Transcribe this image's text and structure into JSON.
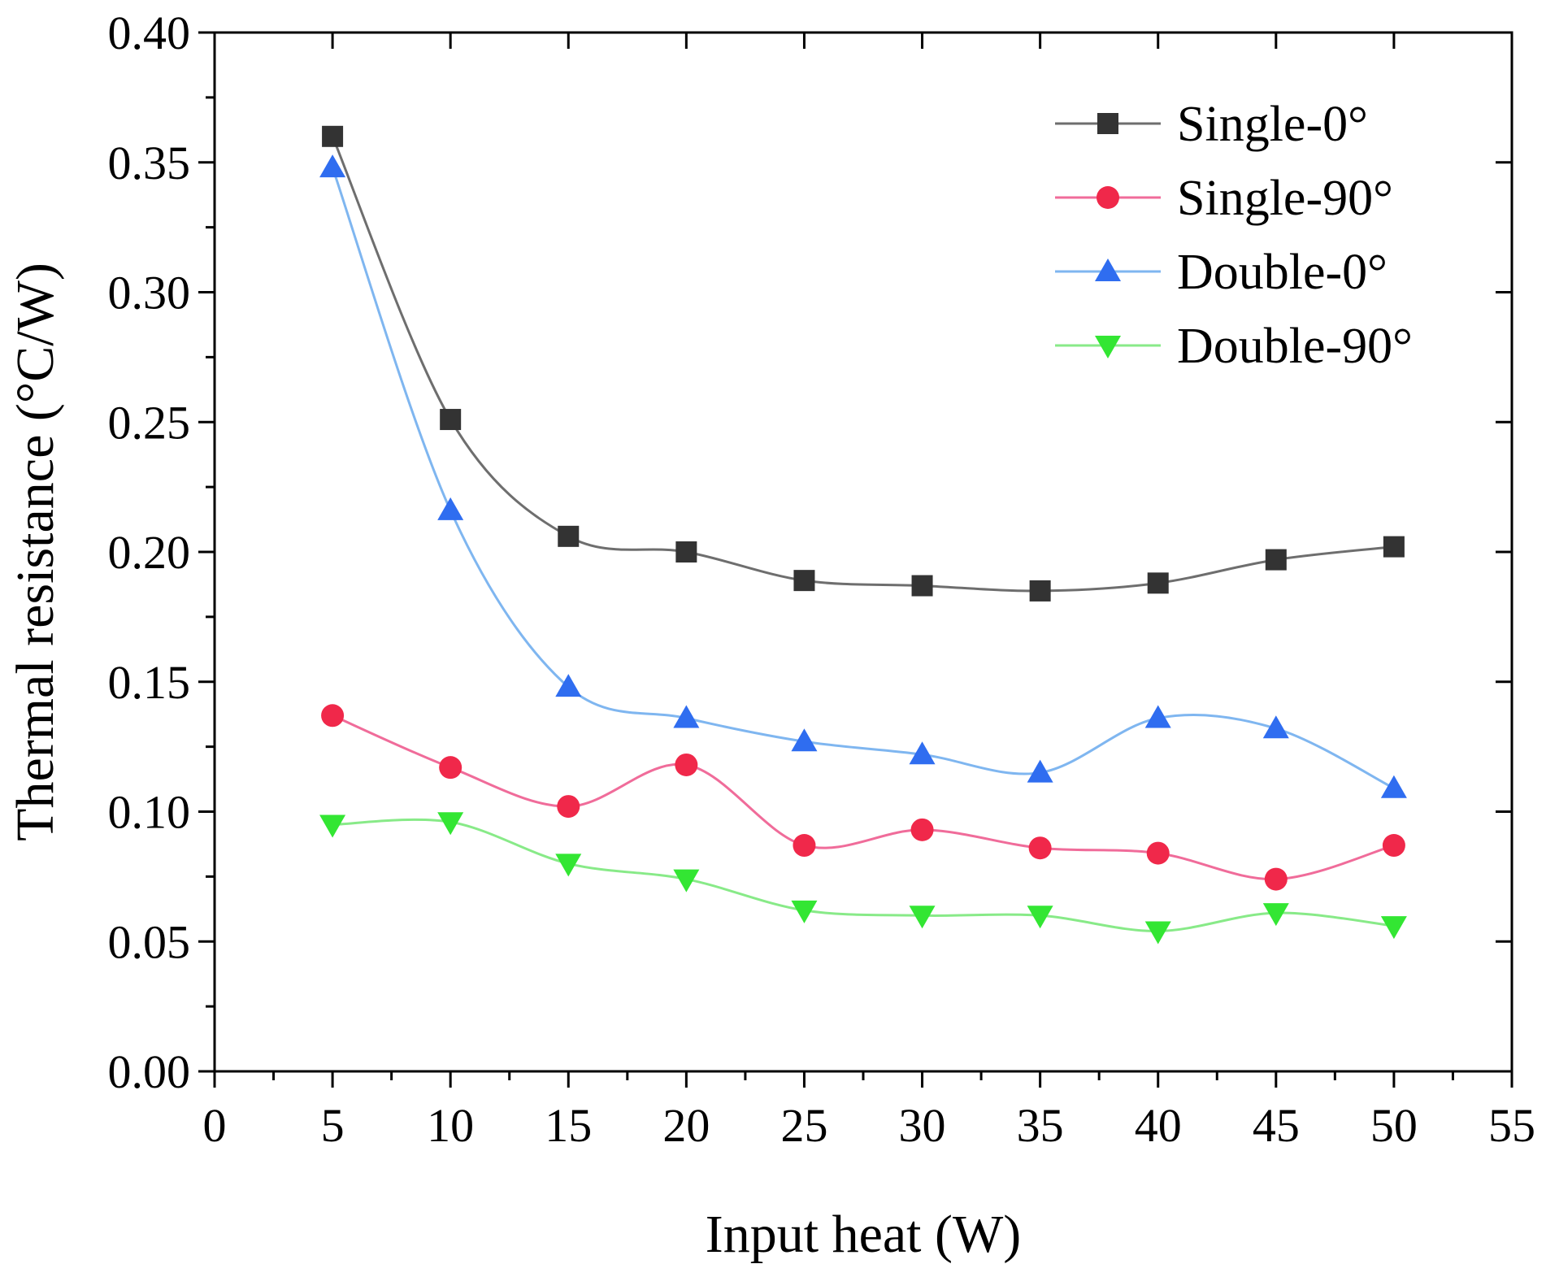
{
  "chart_data": {
    "type": "line",
    "title": "",
    "xlabel": "Input heat (W)",
    "ylabel": "Thermal resistance (°C/W)",
    "xlim": [
      0,
      55
    ],
    "ylim": [
      0,
      0.4
    ],
    "x_ticks": [
      "0",
      "5",
      "10",
      "15",
      "20",
      "25",
      "30",
      "35",
      "40",
      "45",
      "50",
      "55"
    ],
    "y_ticks": [
      "0.00",
      "0.05",
      "0.10",
      "0.15",
      "0.20",
      "0.25",
      "0.30",
      "0.35",
      "0.40"
    ],
    "grid": false,
    "legend_position": "top-right",
    "x": [
      5,
      10,
      15,
      20,
      25,
      30,
      35,
      40,
      45,
      50
    ],
    "series": [
      {
        "name": "Single-0°",
        "marker": "square",
        "color": "#333333",
        "line_color": "#6e6e6e",
        "values": [
          0.36,
          0.251,
          0.206,
          0.2,
          0.189,
          0.187,
          0.185,
          0.188,
          0.197,
          0.202
        ]
      },
      {
        "name": "Single-90°",
        "marker": "circle",
        "color": "#f0284a",
        "line_color": "#f06c9a",
        "values": [
          0.137,
          0.117,
          0.102,
          0.118,
          0.087,
          0.093,
          0.086,
          0.084,
          0.074,
          0.087
        ]
      },
      {
        "name": "Double-0°",
        "marker": "triangle-up",
        "color": "#2f6df0",
        "line_color": "#7fb6f0",
        "values": [
          0.348,
          0.216,
          0.148,
          0.136,
          0.127,
          0.122,
          0.115,
          0.136,
          0.132,
          0.109
        ]
      },
      {
        "name": "Double-90°",
        "marker": "triangle-down",
        "color": "#33e633",
        "line_color": "#88ea88",
        "values": [
          0.095,
          0.096,
          0.08,
          0.074,
          0.062,
          0.06,
          0.06,
          0.054,
          0.061,
          0.056
        ]
      }
    ]
  }
}
